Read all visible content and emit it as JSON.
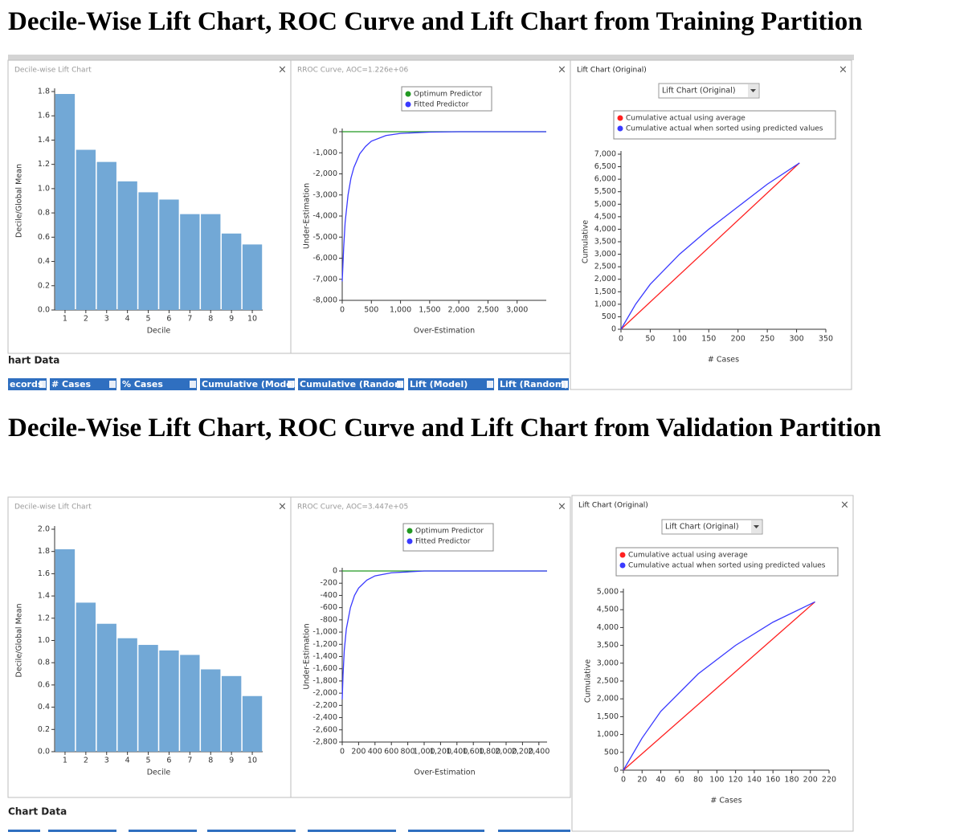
{
  "headings": [
    "Decile-Wise Lift Chart, ROC Curve and Lift Chart from Training Partition",
    "Decile-Wise Lift Chart, ROC Curve and Lift Chart from Validation Partition"
  ],
  "ui": {
    "training_chart_data_label": "hart Data",
    "training_columns": [
      "ecords",
      "# Cases",
      "% Cases",
      "Cumulative (Model)",
      "Cumulative (Random)",
      "Lift (Model)",
      "Lift (Random)"
    ],
    "validation_chart_data_label": "Chart Data"
  },
  "chart_data": [
    {
      "type": "bar",
      "title": "Decile-wise Lift Chart",
      "xlabel": "Decile",
      "ylabel": "Decile/Global Mean",
      "color": "#72a8d6",
      "categories": [
        "1",
        "2",
        "3",
        "4",
        "5",
        "6",
        "7",
        "8",
        "9",
        "10"
      ],
      "values": [
        1.78,
        1.32,
        1.22,
        1.06,
        0.97,
        0.91,
        0.79,
        0.79,
        0.63,
        0.54
      ],
      "ylim": [
        0,
        1.8
      ],
      "yticks": [
        {
          "value": 0,
          "label": "0.0"
        },
        0.2,
        0.4,
        0.6,
        0.8,
        {
          "value": 1,
          "label": "1.0"
        },
        1.2,
        1.4,
        1.6,
        1.8
      ]
    },
    {
      "type": "line",
      "title": "RROC Curve, AOC=1.226e+06",
      "xlabel": "Over-Estimation",
      "ylabel": "Under-Estimation",
      "series": [
        {
          "name": "Optimum Predictor",
          "color": "#229922",
          "x": [
            0,
            3500
          ],
          "values": [
            0,
            0
          ]
        },
        {
          "name": "Fitted Predictor",
          "color": "#3a3aff",
          "x": [
            0,
            25,
            50,
            100,
            150,
            200,
            300,
            400,
            500,
            750,
            1000,
            1500,
            2000,
            3500
          ],
          "values": [
            -7100,
            -5500,
            -4300,
            -3000,
            -2200,
            -1700,
            -1050,
            -700,
            -450,
            -180,
            -80,
            -20,
            0,
            0
          ]
        }
      ],
      "xlim": [
        0,
        3500
      ],
      "xticks": [
        0,
        500,
        {
          "value": 1000,
          "label": "1,000"
        },
        {
          "value": 1500,
          "label": "1,500"
        },
        {
          "value": 2000,
          "label": "2,000"
        },
        {
          "value": 2500,
          "label": "2,500"
        },
        {
          "value": 3000,
          "label": "3,000"
        }
      ],
      "ylim": [
        -8000,
        0
      ],
      "yticks": [
        0,
        {
          "value": -1000,
          "label": "-1,000"
        },
        {
          "value": -2000,
          "label": "-2,000"
        },
        {
          "value": -3000,
          "label": "-3,000"
        },
        {
          "value": -4000,
          "label": "-4,000"
        },
        {
          "value": -5000,
          "label": "-5,000"
        },
        {
          "value": -6000,
          "label": "-6,000"
        },
        {
          "value": -7000,
          "label": "-7,000"
        },
        {
          "value": -8000,
          "label": "-8,000"
        }
      ]
    },
    {
      "type": "line",
      "title": "Lift Chart (Original)",
      "dropdown": "Lift Chart (Original)",
      "xlabel": "# Cases",
      "ylabel": "Cumulative",
      "series": [
        {
          "name": "Cumulative actual using average",
          "color": "#ff2020",
          "x": [
            0,
            305
          ],
          "values": [
            0,
            6650
          ]
        },
        {
          "name": "Cumulative actual when sorted using predicted values",
          "color": "#3a3aff",
          "x": [
            0,
            25,
            50,
            100,
            150,
            200,
            250,
            305
          ],
          "values": [
            0,
            1000,
            1800,
            3000,
            4000,
            4900,
            5800,
            6650
          ]
        }
      ],
      "xlim": [
        0,
        350
      ],
      "xticks": [
        0,
        50,
        100,
        150,
        200,
        250,
        300,
        350
      ],
      "ylim": [
        0,
        7000
      ],
      "yticks": [
        0,
        500,
        {
          "value": 1000,
          "label": "1,000"
        },
        {
          "value": 1500,
          "label": "1,500"
        },
        {
          "value": 2000,
          "label": "2,000"
        },
        {
          "value": 2500,
          "label": "2,500"
        },
        {
          "value": 3000,
          "label": "3,000"
        },
        {
          "value": 3500,
          "label": "3,500"
        },
        {
          "value": 4000,
          "label": "4,000"
        },
        {
          "value": 4500,
          "label": "4,500"
        },
        {
          "value": 5000,
          "label": "5,000"
        },
        {
          "value": 5500,
          "label": "5,500"
        },
        {
          "value": 6000,
          "label": "6,000"
        },
        {
          "value": 6500,
          "label": "6,500"
        },
        {
          "value": 7000,
          "label": "7,000"
        }
      ]
    },
    {
      "type": "bar",
      "title": "Decile-wise Lift Chart",
      "xlabel": "Decile",
      "ylabel": "Decile/Global Mean",
      "color": "#72a8d6",
      "categories": [
        "1",
        "2",
        "3",
        "4",
        "5",
        "6",
        "7",
        "8",
        "9",
        "10"
      ],
      "values": [
        1.82,
        1.34,
        1.15,
        1.02,
        0.96,
        0.91,
        0.87,
        0.74,
        0.68,
        0.5
      ],
      "ylim": [
        0,
        2
      ],
      "yticks": [
        {
          "value": 0,
          "label": "0.0"
        },
        0.2,
        0.4,
        0.6,
        0.8,
        {
          "value": 1,
          "label": "1.0"
        },
        1.2,
        1.4,
        1.6,
        1.8,
        {
          "value": 2,
          "label": "2.0"
        }
      ]
    },
    {
      "type": "line",
      "title": "RROC Curve, AOC=3.447e+05",
      "xlabel": "Over-Estimation",
      "ylabel": "Under-Estimation",
      "series": [
        {
          "name": "Optimum Predictor",
          "color": "#229922",
          "x": [
            0,
            2500
          ],
          "values": [
            0,
            0
          ]
        },
        {
          "name": "Fitted Predictor",
          "color": "#3a3aff",
          "x": [
            0,
            10,
            25,
            50,
            100,
            150,
            200,
            300,
            400,
            600,
            1000,
            2500
          ],
          "values": [
            -2100,
            -1700,
            -1300,
            -950,
            -600,
            -400,
            -280,
            -150,
            -80,
            -30,
            0,
            0
          ]
        }
      ],
      "xlim": [
        0,
        2500
      ],
      "xticks": [
        0,
        200,
        400,
        600,
        800,
        {
          "value": 1000,
          "label": "1,000"
        },
        {
          "value": 1200,
          "label": "1,200"
        },
        {
          "value": 1400,
          "label": "1,400"
        },
        {
          "value": 1600,
          "label": "1,600"
        },
        {
          "value": 1800,
          "label": "1,800"
        },
        {
          "value": 2000,
          "label": "2,000"
        },
        {
          "value": 2200,
          "label": "2,200"
        },
        {
          "value": 2400,
          "label": "2,400"
        }
      ],
      "ylim": [
        -2800,
        0
      ],
      "yticks": [
        0,
        -200,
        -400,
        -600,
        -800,
        {
          "value": -1000,
          "label": "-1,000"
        },
        {
          "value": -1200,
          "label": "-1,200"
        },
        {
          "value": -1400,
          "label": "-1,400"
        },
        {
          "value": -1600,
          "label": "-1,600"
        },
        {
          "value": -1800,
          "label": "-1,800"
        },
        {
          "value": -2000,
          "label": "-2,000"
        },
        {
          "value": -2200,
          "label": "-2,200"
        },
        {
          "value": -2400,
          "label": "-2,400"
        },
        {
          "value": -2600,
          "label": "-2,600"
        },
        {
          "value": -2800,
          "label": "-2,800"
        }
      ]
    },
    {
      "type": "line",
      "title": "Lift Chart (Original)",
      "dropdown": "Lift Chart (Original)",
      "xlabel": "# Cases",
      "ylabel": "Cumulative",
      "series": [
        {
          "name": "Cumulative actual using average",
          "color": "#ff2020",
          "x": [
            0,
            205
          ],
          "values": [
            0,
            4720
          ]
        },
        {
          "name": "Cumulative actual when sorted using predicted values",
          "color": "#3a3aff",
          "x": [
            0,
            20,
            40,
            80,
            120,
            160,
            205
          ],
          "values": [
            0,
            900,
            1650,
            2700,
            3500,
            4150,
            4720
          ]
        }
      ],
      "xlim": [
        0,
        220
      ],
      "xticks": [
        0,
        20,
        40,
        60,
        80,
        100,
        120,
        140,
        160,
        180,
        200,
        220
      ],
      "ylim": [
        0,
        5000
      ],
      "yticks": [
        0,
        500,
        {
          "value": 1000,
          "label": "1,000"
        },
        {
          "value": 1500,
          "label": "1,500"
        },
        {
          "value": 2000,
          "label": "2,000"
        },
        {
          "value": 2500,
          "label": "2,500"
        },
        {
          "value": 3000,
          "label": "3,000"
        },
        {
          "value": 3500,
          "label": "3,500"
        },
        {
          "value": 4000,
          "label": "4,000"
        },
        {
          "value": 4500,
          "label": "4,500"
        },
        {
          "value": 5000,
          "label": "5,000"
        }
      ]
    }
  ]
}
